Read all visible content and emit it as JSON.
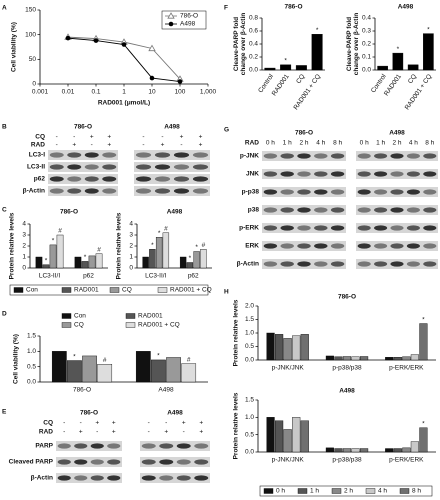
{
  "chart_data": [
    {
      "type": "line",
      "panel": "A",
      "ylabel": "Cell viability (%)",
      "xlabel": "RAD001 (μmol/L)",
      "log_x": true,
      "x": [
        0.01,
        0.1,
        1,
        10,
        100
      ],
      "xlim": [
        0.001,
        1000
      ],
      "xticks": [
        0.001,
        0.01,
        0.1,
        1,
        10,
        100,
        {
          "value": 1000,
          "label": "1,000"
        }
      ],
      "ylim": [
        0,
        150
      ],
      "yticks": [
        0,
        50,
        100,
        150
      ],
      "legend": "upper right",
      "series": [
        {
          "name": "786-O",
          "color": "#777777",
          "marker": "triangle",
          "values": [
            95,
            92,
            85,
            72,
            10
          ]
        },
        {
          "name": "A498",
          "color": "#000000",
          "marker": "circle",
          "values": [
            93,
            88,
            80,
            12,
            5
          ]
        }
      ]
    },
    {
      "type": "bar",
      "panel": "F",
      "title": "786-O",
      "ylabel": "Cleave-PARP fold change over β-Actin",
      "categories": [
        "Control",
        "RAD001",
        "CQ",
        "RAD001 + CQ"
      ],
      "values": [
        0.03,
        0.08,
        0.07,
        0.55
      ],
      "labels": [
        null,
        "*",
        null,
        "*"
      ],
      "color": "#000000",
      "ylim": [
        0,
        0.8
      ],
      "yticks": [
        {
          "value": 0,
          "label": "0.0"
        },
        0.2,
        0.4,
        0.6,
        0.8
      ]
    },
    {
      "type": "bar",
      "title": "A498",
      "ylabel": "Cleave-PARP fold change over β-Actin",
      "categories": [
        "Control",
        "RAD001",
        "CQ",
        "RAD001 + CQ"
      ],
      "values": [
        0.03,
        0.13,
        0.04,
        0.28
      ],
      "labels": [
        null,
        "*",
        null,
        "*"
      ],
      "color": "#000000",
      "ylim": [
        0,
        0.4
      ],
      "yticks": [
        {
          "value": 0,
          "label": "0.0"
        },
        0.1,
        0.2,
        0.3,
        0.4
      ]
    },
    {
      "type": "bar",
      "panel": "C",
      "title": "786-O",
      "ylabel": "Protein relative levels",
      "legend": "bottom",
      "categories": [
        "LC3-II/I",
        "p62"
      ],
      "ylim": [
        0,
        4
      ],
      "yticks": [
        0,
        1,
        2,
        3,
        4
      ],
      "series": [
        {
          "name": "Con",
          "color": "#111111",
          "values": [
            1,
            1
          ],
          "labels": [
            null,
            null
          ]
        },
        {
          "name": "RAD001",
          "color": "#555555",
          "values": [
            0.3,
            0.6
          ],
          "labels": [
            "*",
            "*"
          ]
        },
        {
          "name": "CQ",
          "color": "#999999",
          "values": [
            2.1,
            1.1
          ],
          "labels": [
            "*",
            null
          ]
        },
        {
          "name": "RAD001 + CQ",
          "color": "#dddddd",
          "values": [
            3.0,
            1.3
          ],
          "labels": [
            "#",
            "#"
          ]
        }
      ]
    },
    {
      "type": "bar",
      "title": "A498",
      "ylabel": "Protein relative levels",
      "categories": [
        "LC3-II/I",
        "p62"
      ],
      "ylim": [
        0,
        4
      ],
      "yticks": [
        0,
        1,
        2,
        3,
        4
      ],
      "series": [
        {
          "color": "#111111",
          "values": [
            1,
            1
          ],
          "labels": [
            null,
            null
          ]
        },
        {
          "color": "#555555",
          "values": [
            1.7,
            0.5
          ],
          "labels": [
            "*",
            "*"
          ]
        },
        {
          "color": "#999999",
          "values": [
            2.8,
            1.5
          ],
          "labels": [
            "*",
            "*"
          ]
        },
        {
          "color": "#dddddd",
          "values": [
            3.2,
            1.7
          ],
          "labels": [
            "#",
            "#"
          ]
        }
      ]
    },
    {
      "type": "bar",
      "panel": "D",
      "ylabel": "Cell viability (%)",
      "legend": "top",
      "categories": [
        "786-O",
        "A498"
      ],
      "ylim": [
        0,
        1.5
      ],
      "yticks": [
        {
          "value": 0,
          "label": "0.0"
        },
        0.5,
        {
          "value": 1,
          "label": "1.0"
        },
        1.5
      ],
      "series": [
        {
          "name": "Con",
          "color": "#111111",
          "values": [
            1,
            1
          ],
          "labels": [
            null,
            null
          ]
        },
        {
          "name": "RAD001",
          "color": "#555555",
          "values": [
            0.7,
            0.72
          ],
          "labels": [
            "*",
            "*"
          ]
        },
        {
          "name": "CQ",
          "color": "#999999",
          "values": [
            0.85,
            0.8
          ],
          "labels": [
            null,
            null
          ]
        },
        {
          "name": "RAD001 + CQ",
          "color": "#dddddd",
          "values": [
            0.58,
            0.6
          ],
          "labels": [
            "#",
            "#"
          ]
        }
      ]
    },
    {
      "type": "bar",
      "panel": "H",
      "title": "786-O",
      "ylabel": "Protein relative levels",
      "categories": [
        "p-JNK/JNK",
        "p-p38/p38",
        "p-ERK/ERK"
      ],
      "ylim": [
        0,
        2
      ],
      "yticks": [
        {
          "value": 0,
          "label": "0.0"
        },
        0.5,
        {
          "value": 1,
          "label": "1.0"
        },
        1.5,
        {
          "value": 2,
          "label": "2.0"
        }
      ],
      "series": [
        {
          "color": "#111111",
          "values": [
            1,
            0.15,
            0.1
          ],
          "labels": [
            null,
            null,
            null
          ]
        },
        {
          "color": "#555555",
          "values": [
            0.95,
            0.12,
            0.1
          ],
          "labels": [
            null,
            null,
            null
          ]
        },
        {
          "color": "#888888",
          "values": [
            0.8,
            0.13,
            0.12
          ],
          "labels": [
            null,
            null,
            null
          ]
        },
        {
          "color": "#c8c8c8",
          "values": [
            0.9,
            0.12,
            0.2
          ],
          "labels": [
            null,
            null,
            null
          ]
        },
        {
          "color": "#707070",
          "values": [
            0.95,
            0.13,
            1.35
          ],
          "labels": [
            null,
            null,
            "*"
          ]
        }
      ]
    },
    {
      "type": "bar",
      "title": "A498",
      "ylabel": "Protein relative levels",
      "legend": "bottom",
      "categories": [
        "p-JNK/JNK",
        "p-p38/p38",
        "p-ERK/ERK"
      ],
      "ylim": [
        0,
        1.5
      ],
      "yticks": [
        {
          "value": 0,
          "label": "0.0"
        },
        0.5,
        {
          "value": 1,
          "label": "1.0"
        },
        1.5
      ],
      "series": [
        {
          "name": "0 h",
          "color": "#111111",
          "values": [
            1,
            0.12,
            0.1
          ],
          "labels": [
            null,
            null,
            null
          ]
        },
        {
          "name": "1 h",
          "color": "#555555",
          "values": [
            0.9,
            0.1,
            0.1
          ],
          "labels": [
            null,
            null,
            null
          ]
        },
        {
          "name": "2 h",
          "color": "#888888",
          "values": [
            0.65,
            0.1,
            0.12
          ],
          "labels": [
            null,
            null,
            null
          ]
        },
        {
          "name": "4 h",
          "color": "#c8c8c8",
          "values": [
            1.0,
            0.1,
            0.3
          ],
          "labels": [
            null,
            null,
            null
          ]
        },
        {
          "name": "8 h",
          "color": "#707070",
          "values": [
            0.9,
            0.1,
            0.7
          ],
          "labels": [
            null,
            null,
            "*"
          ]
        }
      ]
    }
  ],
  "blots": [
    {
      "panel": "B",
      "treatments": [
        "CQ",
        "RAD"
      ],
      "bands": [
        "LC3-I",
        "LC3-II",
        "p62",
        "β-Actin"
      ],
      "groups": [
        {
          "title": "786-O",
          "signs": [
            [
              "-",
              "-",
              "+",
              "+"
            ],
            [
              "-",
              "+",
              "-",
              "+"
            ]
          ]
        },
        {
          "title": "A498",
          "signs": [
            [
              "-",
              "-",
              "+",
              "+"
            ],
            [
              "-",
              "+",
              "-",
              "+"
            ]
          ]
        }
      ]
    },
    {
      "panel": "E",
      "treatments": [
        "CQ",
        "RAD"
      ],
      "bands": [
        "PARP",
        "Cleaved PARP",
        "β-Actin"
      ],
      "groups": [
        {
          "title": "786-O",
          "signs": [
            [
              "-",
              "-",
              "+",
              "+"
            ],
            [
              "-",
              "+",
              "-",
              "+"
            ]
          ]
        },
        {
          "title": "A498",
          "signs": [
            [
              "-",
              "-",
              "+",
              "+"
            ],
            [
              "-",
              "+",
              "-",
              "+"
            ]
          ]
        }
      ]
    },
    {
      "panel": "G",
      "treatments": [
        "RAD"
      ],
      "bands": [
        "p-JNK",
        "JNK",
        "p-p38",
        "p38",
        "p-ERK",
        "ERK",
        "β-Actin"
      ],
      "groups": [
        {
          "title": "786-O",
          "signs": [
            [
              "0 h",
              "1 h",
              "2 h",
              "4 h",
              "8 h"
            ]
          ]
        },
        {
          "title": "A498",
          "signs": [
            [
              "0 h",
              "1 h",
              "2 h",
              "4 h",
              "8 h"
            ]
          ]
        }
      ]
    }
  ]
}
